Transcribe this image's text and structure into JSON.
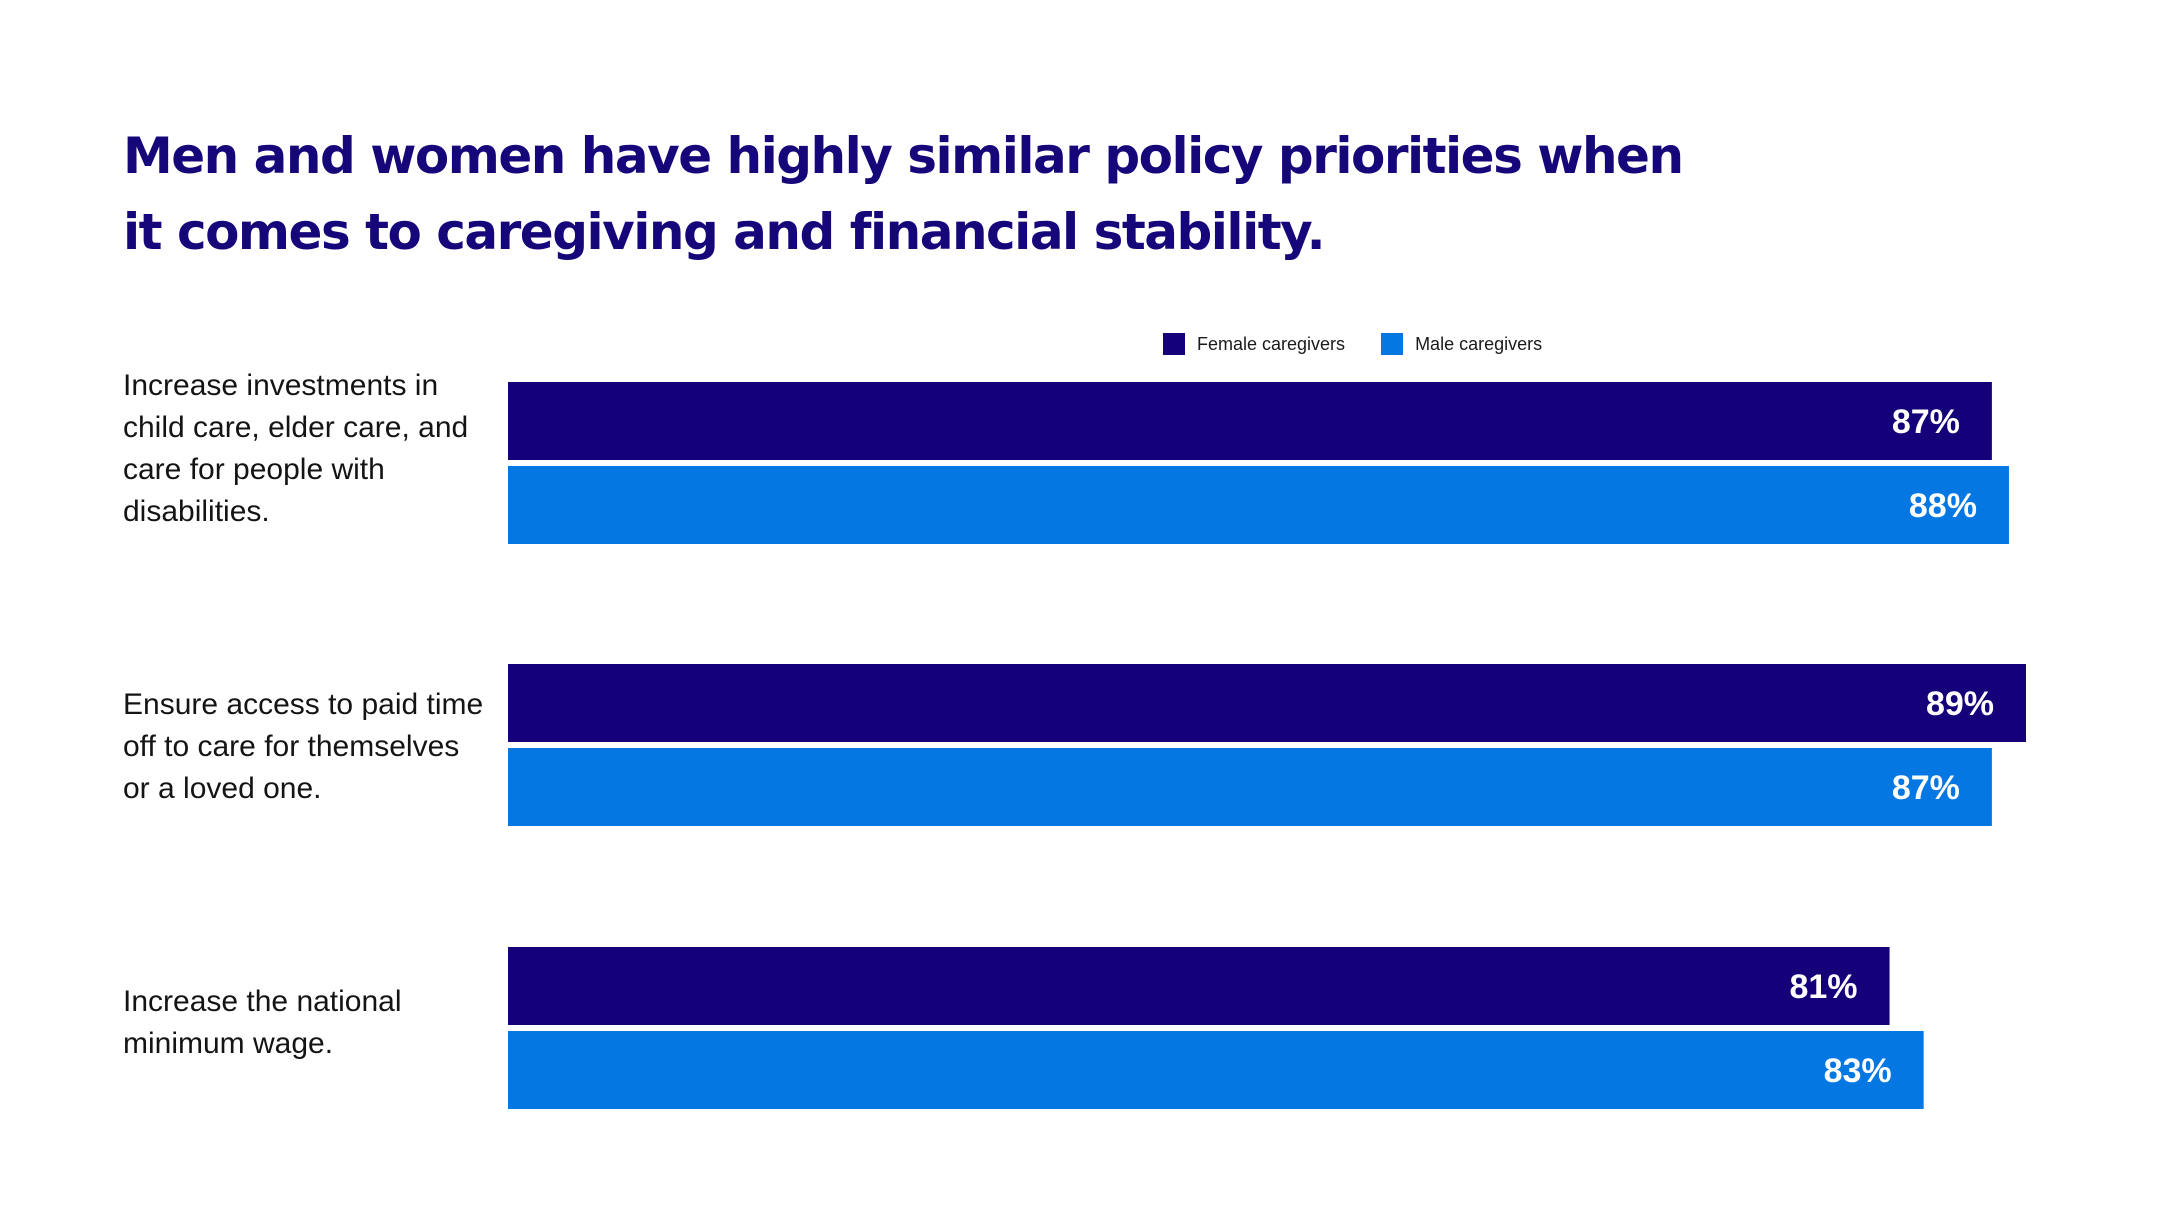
{
  "chart_data": {
    "type": "bar",
    "orientation": "horizontal",
    "title": "Men and women have highly similar policy priorities when it comes to caregiving and financial stability.",
    "categories": [
      "Increase investments in child care, elder care, and care for people with disabilities.",
      "Ensure access to paid time off to care for themselves or a loved one.",
      "Increase the national minimum wage."
    ],
    "series": [
      {
        "name": "Female caregivers",
        "color": "#15007a",
        "values": [
          87,
          89,
          81
        ],
        "labels": [
          "87%",
          "89%",
          "81%"
        ]
      },
      {
        "name": "Male caregivers",
        "color": "#0477e3",
        "values": [
          88,
          87,
          83
        ],
        "labels": [
          "88%",
          "87%",
          "83%"
        ]
      }
    ],
    "xlim": [
      0,
      89
    ],
    "legend": "top-right",
    "grid": false
  }
}
